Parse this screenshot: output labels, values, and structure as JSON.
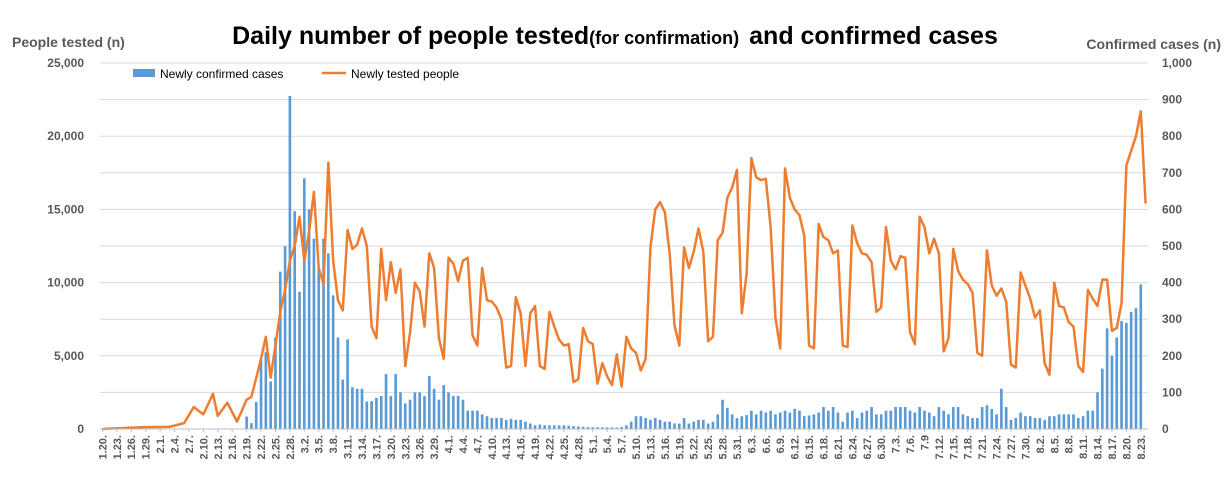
{
  "chart_data": {
    "type": "bar+line",
    "title_main": "Daily number of people tested",
    "title_paren": "(for confirmation)",
    "title_tail": "and confirmed cases",
    "ylabel_left": "People tested (n)",
    "ylabel_right": "Confirmed cases (n)",
    "left_axis": {
      "min": 0,
      "max": 25000,
      "ticks": [
        "0",
        "5,000",
        "10,000",
        "15,000",
        "20,000",
        "25,000"
      ]
    },
    "right_axis": {
      "min": 0,
      "max": 1000,
      "ticks": [
        "0",
        "100",
        "200",
        "300",
        "400",
        "500",
        "600",
        "700",
        "800",
        "900",
        "1,000"
      ]
    },
    "legend": {
      "placement": "top-left",
      "bar_label": "Newly confirmed cases",
      "line_label": "Newly tested people"
    },
    "colors": {
      "bars": "#5b9bd5",
      "line": "#ed7d31",
      "grid": "#d9d9d9",
      "text": "#595959"
    },
    "x_start": "2020-01-20",
    "x_tick_every_days": 3,
    "x_tick_labels": [
      "1.20.",
      "1.23.",
      "1.26.",
      "1.29.",
      "2.1.",
      "2.4.",
      "2.7.",
      "2.10.",
      "2.13.",
      "2.16.",
      "2.19.",
      "2.22.",
      "2.25.",
      "2.28.",
      "3.2.",
      "3.5.",
      "3.8.",
      "3.11.",
      "3.14.",
      "3.17.",
      "3.20.",
      "3.23.",
      "3.26.",
      "3.29.",
      "4.1.",
      "4.4.",
      "4.7.",
      "4.10.",
      "4.13.",
      "4.16.",
      "4.19.",
      "4.22.",
      "4.25.",
      "4.28.",
      "5.1.",
      "5.4.",
      "5.7.",
      "5.10.",
      "5.13.",
      "5.16.",
      "5.19.",
      "5.22.",
      "5.25.",
      "5.28.",
      "5.31.",
      "6.3.",
      "6.6.",
      "6.9.",
      "6.12.",
      "6.15.",
      "6.18.",
      "6.21.",
      "6.24.",
      "6.27.",
      "6.30.",
      "7.3.",
      "7.6.",
      "7.9",
      "7.12.",
      "7.15.",
      "7.18.",
      "7.21.",
      "7.24.",
      "7.27.",
      "7.30.",
      "8.2.",
      "8.5.",
      "8.8.",
      "8.11.",
      "8.14.",
      "8.17.",
      "8.20.",
      "8.23."
    ],
    "tests_anchors": [
      [
        "1.20.",
        0
      ],
      [
        "1.28.",
        120
      ],
      [
        "2.3.",
        150
      ],
      [
        "2.6.",
        400
      ],
      [
        "2.8.",
        1500
      ],
      [
        "2.10.",
        1000
      ],
      [
        "2.12.",
        2400
      ],
      [
        "2.13.",
        900
      ],
      [
        "2.15.",
        1800
      ],
      [
        "2.17.",
        500
      ],
      [
        "2.19.",
        2000
      ],
      [
        "2.20.",
        2200
      ],
      [
        "2.22.",
        4800
      ],
      [
        "2.23.",
        6300
      ],
      [
        "2.24.",
        3500
      ],
      [
        "2.26.",
        8000
      ],
      [
        "2.27.",
        9500
      ],
      [
        "2.28.",
        11500
      ],
      [
        "2.29.",
        12500
      ],
      [
        "3.1.",
        14500
      ],
      [
        "3.2.",
        11500
      ],
      [
        "3.3.",
        13500
      ],
      [
        "3.4.",
        16200
      ],
      [
        "3.5.",
        11000
      ],
      [
        "3.6.",
        9900
      ],
      [
        "3.7.",
        18200
      ],
      [
        "3.8.",
        11500
      ],
      [
        "3.9.",
        8800
      ],
      [
        "3.10.",
        8100
      ],
      [
        "3.11.",
        13600
      ],
      [
        "3.12.",
        12300
      ],
      [
        "3.13.",
        12600
      ],
      [
        "3.14.",
        13700
      ],
      [
        "3.15.",
        12500
      ],
      [
        "3.16.",
        7000
      ],
      [
        "3.17.",
        6200
      ],
      [
        "3.18.",
        12300
      ],
      [
        "3.19.",
        8800
      ],
      [
        "3.20.",
        11400
      ],
      [
        "3.21.",
        9300
      ],
      [
        "3.22.",
        10900
      ],
      [
        "3.23.",
        4300
      ],
      [
        "3.24.",
        6600
      ],
      [
        "3.25.",
        10000
      ],
      [
        "3.26.",
        9400
      ],
      [
        "3.27.",
        7000
      ],
      [
        "3.28.",
        12000
      ],
      [
        "3.29.",
        11000
      ],
      [
        "3.30.",
        6200
      ],
      [
        "3.31.",
        4800
      ],
      [
        "4.1.",
        11700
      ],
      [
        "4.2.",
        11300
      ],
      [
        "4.3.",
        10100
      ],
      [
        "4.4.",
        11500
      ],
      [
        "4.5.",
        11700
      ],
      [
        "4.6.",
        6400
      ],
      [
        "4.7.",
        5700
      ],
      [
        "4.8.",
        11000
      ],
      [
        "4.9.",
        8800
      ],
      [
        "4.10.",
        8700
      ],
      [
        "4.11.",
        8300
      ],
      [
        "4.12.",
        7500
      ],
      [
        "4.13.",
        4200
      ],
      [
        "4.14.",
        4300
      ],
      [
        "4.15.",
        9000
      ],
      [
        "4.16.",
        7900
      ],
      [
        "4.17.",
        4300
      ],
      [
        "4.18.",
        7900
      ],
      [
        "4.19.",
        8400
      ],
      [
        "4.20.",
        4300
      ],
      [
        "4.21.",
        4100
      ],
      [
        "4.22.",
        8000
      ],
      [
        "4.23.",
        7000
      ],
      [
        "4.24.",
        6100
      ],
      [
        "4.25.",
        5700
      ],
      [
        "4.26.",
        5800
      ],
      [
        "4.27.",
        3200
      ],
      [
        "4.28.",
        3400
      ],
      [
        "4.29.",
        6900
      ],
      [
        "4.30.",
        6000
      ],
      [
        "5.1.",
        5800
      ],
      [
        "5.2.",
        3100
      ],
      [
        "5.3.",
        4500
      ],
      [
        "5.4.",
        3600
      ],
      [
        "5.5.",
        3000
      ],
      [
        "5.6.",
        5100
      ],
      [
        "5.7.",
        2900
      ],
      [
        "5.8.",
        6300
      ],
      [
        "5.9.",
        5500
      ],
      [
        "5.10.",
        5200
      ],
      [
        "5.11.",
        4000
      ],
      [
        "5.12.",
        4800
      ],
      [
        "5.13.",
        12400
      ],
      [
        "5.14.",
        15000
      ],
      [
        "5.15.",
        15500
      ],
      [
        "5.16.",
        14800
      ],
      [
        "5.17.",
        12000
      ],
      [
        "5.18.",
        7100
      ],
      [
        "5.19.",
        5700
      ],
      [
        "5.20.",
        12400
      ],
      [
        "5.21.",
        11000
      ],
      [
        "5.22.",
        12100
      ],
      [
        "5.23.",
        13700
      ],
      [
        "5.24.",
        12100
      ],
      [
        "5.25.",
        6000
      ],
      [
        "5.26.",
        6300
      ],
      [
        "5.27.",
        12900
      ],
      [
        "5.28.",
        13400
      ],
      [
        "5.29.",
        15800
      ],
      [
        "5.30.",
        16500
      ],
      [
        "5.31.",
        17700
      ],
      [
        "6.1.",
        7900
      ],
      [
        "6.2.",
        10600
      ],
      [
        "6.3.",
        18500
      ],
      [
        "6.4.",
        17200
      ],
      [
        "6.5.",
        17000
      ],
      [
        "6.6.",
        17100
      ],
      [
        "6.7.",
        13800
      ],
      [
        "6.8.",
        7600
      ],
      [
        "6.9.",
        5500
      ],
      [
        "6.10.",
        17800
      ],
      [
        "6.11.",
        15800
      ],
      [
        "6.12.",
        15000
      ],
      [
        "6.13.",
        14600
      ],
      [
        "6.14.",
        13200
      ],
      [
        "6.15.",
        5700
      ],
      [
        "6.16.",
        5500
      ],
      [
        "6.17.",
        14000
      ],
      [
        "6.18.",
        13100
      ],
      [
        "6.19.",
        12900
      ],
      [
        "6.20.",
        12000
      ],
      [
        "6.21.",
        12200
      ],
      [
        "6.22.",
        5700
      ],
      [
        "6.23.",
        5600
      ],
      [
        "6.24.",
        13900
      ],
      [
        "6.25.",
        12700
      ],
      [
        "6.26.",
        12000
      ],
      [
        "6.27.",
        11900
      ],
      [
        "6.28.",
        11400
      ],
      [
        "6.29.",
        8000
      ],
      [
        "6.30.",
        8300
      ],
      [
        "7.1.",
        13800
      ],
      [
        "7.2.",
        11500
      ],
      [
        "7.3.",
        10900
      ],
      [
        "7.4.",
        11800
      ],
      [
        "7.5.",
        11700
      ],
      [
        "7.6.",
        6600
      ],
      [
        "7.7.",
        5800
      ],
      [
        "7.8.",
        14500
      ],
      [
        "7.9.",
        13800
      ],
      [
        "7.10.",
        12000
      ],
      [
        "7.11.",
        13000
      ],
      [
        "7.12.",
        12000
      ],
      [
        "7.13.",
        5300
      ],
      [
        "7.14.",
        6200
      ],
      [
        "7.15.",
        12300
      ],
      [
        "7.16.",
        10800
      ],
      [
        "7.17.",
        10200
      ],
      [
        "7.18.",
        9900
      ],
      [
        "7.19.",
        9300
      ],
      [
        "7.20.",
        5200
      ],
      [
        "7.21.",
        5000
      ],
      [
        "7.22.",
        12200
      ],
      [
        "7.23.",
        9800
      ],
      [
        "7.24.",
        9100
      ],
      [
        "7.25.",
        9600
      ],
      [
        "7.26.",
        8700
      ],
      [
        "7.27.",
        4400
      ],
      [
        "7.28.",
        4200
      ],
      [
        "7.29.",
        10700
      ],
      [
        "7.30.",
        9800
      ],
      [
        "7.31.",
        8900
      ],
      [
        "8.1.",
        7600
      ],
      [
        "8.2.",
        8100
      ],
      [
        "8.3.",
        4500
      ],
      [
        "8.4.",
        3700
      ],
      [
        "8.5.",
        10000
      ],
      [
        "8.6.",
        8400
      ],
      [
        "8.7.",
        8300
      ],
      [
        "8.8.",
        7300
      ],
      [
        "8.9.",
        7000
      ],
      [
        "8.10.",
        4300
      ],
      [
        "8.11.",
        3900
      ],
      [
        "8.12.",
        9500
      ],
      [
        "8.13.",
        8900
      ],
      [
        "8.14.",
        8400
      ],
      [
        "8.15.",
        10200
      ],
      [
        "8.16.",
        10200
      ],
      [
        "8.17.",
        6700
      ],
      [
        "8.18.",
        6900
      ],
      [
        "8.19.",
        8600
      ],
      [
        "8.20.",
        18000
      ],
      [
        "8.21.",
        19000
      ],
      [
        "8.22.",
        20000
      ],
      [
        "8.23.",
        21700
      ],
      [
        "8.24.",
        15400
      ]
    ],
    "cases_anchors": [
      [
        "1.20.",
        1
      ],
      [
        "2.18.",
        1
      ],
      [
        "2.19.",
        34
      ],
      [
        "2.20.",
        16
      ],
      [
        "2.21.",
        74
      ],
      [
        "2.22.",
        190
      ],
      [
        "2.23.",
        210
      ],
      [
        "2.24.",
        130
      ],
      [
        "2.25.",
        250
      ],
      [
        "2.26.",
        430
      ],
      [
        "2.27.",
        500
      ],
      [
        "2.28.",
        910
      ],
      [
        "2.29.",
        595
      ],
      [
        "3.1.",
        375
      ],
      [
        "3.2.",
        685
      ],
      [
        "3.3.",
        600
      ],
      [
        "3.4.",
        520
      ],
      [
        "3.5.",
        440
      ],
      [
        "3.6.",
        520
      ],
      [
        "3.7.",
        480
      ],
      [
        "3.8.",
        365
      ],
      [
        "3.9.",
        250
      ],
      [
        "3.10.",
        135
      ],
      [
        "3.11.",
        245
      ],
      [
        "3.12.",
        114
      ],
      [
        "3.13.",
        110
      ],
      [
        "3.14.",
        110
      ],
      [
        "3.15.",
        75
      ],
      [
        "3.16.",
        76
      ],
      [
        "3.17.",
        85
      ],
      [
        "3.18.",
        90
      ],
      [
        "3.19.",
        150
      ],
      [
        "3.20.",
        90
      ],
      [
        "3.21.",
        150
      ],
      [
        "3.22.",
        100
      ],
      [
        "3.23.",
        70
      ],
      [
        "3.24.",
        80
      ],
      [
        "3.25.",
        100
      ],
      [
        "3.26.",
        100
      ],
      [
        "3.27.",
        90
      ],
      [
        "3.28.",
        145
      ],
      [
        "3.29.",
        110
      ],
      [
        "3.30.",
        80
      ],
      [
        "3.31.",
        120
      ],
      [
        "4.1.",
        100
      ],
      [
        "4.2.",
        90
      ],
      [
        "4.3.",
        90
      ],
      [
        "4.4.",
        80
      ],
      [
        "4.5.",
        50
      ],
      [
        "4.6.",
        50
      ],
      [
        "4.7.",
        50
      ],
      [
        "4.8.",
        40
      ],
      [
        "4.9.",
        35
      ],
      [
        "4.10.",
        30
      ],
      [
        "4.11.",
        30
      ],
      [
        "4.12.",
        30
      ],
      [
        "4.13.",
        25
      ],
      [
        "4.14.",
        28
      ],
      [
        "4.15.",
        25
      ],
      [
        "4.16.",
        25
      ],
      [
        "4.17.",
        20
      ],
      [
        "4.18.",
        15
      ],
      [
        "4.19.",
        10
      ],
      [
        "4.20.",
        12
      ],
      [
        "4.21.",
        10
      ],
      [
        "4.25.",
        10
      ],
      [
        "4.30.",
        5
      ],
      [
        "5.6.",
        4
      ],
      [
        "5.7.",
        5
      ],
      [
        "5.8.",
        10
      ],
      [
        "5.9.",
        20
      ],
      [
        "5.10.",
        35
      ],
      [
        "5.11.",
        35
      ],
      [
        "5.12.",
        30
      ],
      [
        "5.13.",
        25
      ],
      [
        "5.14.",
        30
      ],
      [
        "5.15.",
        25
      ],
      [
        "5.16.",
        20
      ],
      [
        "5.17.",
        20
      ],
      [
        "5.18.",
        15
      ],
      [
        "5.19.",
        15
      ],
      [
        "5.20.",
        30
      ],
      [
        "5.21.",
        15
      ],
      [
        "5.22.",
        20
      ],
      [
        "5.23.",
        25
      ],
      [
        "5.24.",
        25
      ],
      [
        "5.25.",
        15
      ],
      [
        "5.26.",
        20
      ],
      [
        "5.27.",
        40
      ],
      [
        "5.28.",
        80
      ],
      [
        "5.29.",
        58
      ],
      [
        "5.30.",
        40
      ],
      [
        "5.31.",
        30
      ],
      [
        "6.1.",
        35
      ],
      [
        "6.2.",
        38
      ],
      [
        "6.3.",
        50
      ],
      [
        "6.4.",
        40
      ],
      [
        "6.5.",
        50
      ],
      [
        "6.6.",
        45
      ],
      [
        "6.7.",
        50
      ],
      [
        "6.8.",
        40
      ],
      [
        "6.9.",
        45
      ],
      [
        "6.10.",
        50
      ],
      [
        "6.11.",
        45
      ],
      [
        "6.12.",
        55
      ],
      [
        "6.13.",
        50
      ],
      [
        "6.14.",
        35
      ],
      [
        "6.15.",
        37
      ],
      [
        "6.16.",
        40
      ],
      [
        "6.17.",
        45
      ],
      [
        "6.18.",
        60
      ],
      [
        "6.19.",
        50
      ],
      [
        "6.20.",
        60
      ],
      [
        "6.21.",
        45
      ],
      [
        "6.22.",
        20
      ],
      [
        "6.23.",
        45
      ],
      [
        "6.24.",
        50
      ],
      [
        "6.25.",
        30
      ],
      [
        "6.26.",
        45
      ],
      [
        "6.27.",
        50
      ],
      [
        "6.28.",
        60
      ],
      [
        "6.29.",
        40
      ],
      [
        "6.30.",
        40
      ],
      [
        "7.1.",
        50
      ],
      [
        "7.2.",
        50
      ],
      [
        "7.3.",
        60
      ],
      [
        "7.4.",
        60
      ],
      [
        "7.5.",
        60
      ],
      [
        "7.6.",
        50
      ],
      [
        "7.7.",
        45
      ],
      [
        "7.8.",
        60
      ],
      [
        "7.9.",
        50
      ],
      [
        "7.10.",
        45
      ],
      [
        "7.11.",
        35
      ],
      [
        "7.12.",
        60
      ],
      [
        "7.13.",
        50
      ],
      [
        "7.14.",
        40
      ],
      [
        "7.15.",
        60
      ],
      [
        "7.16.",
        60
      ],
      [
        "7.17.",
        40
      ],
      [
        "7.18.",
        35
      ],
      [
        "7.19.",
        30
      ],
      [
        "7.20.",
        30
      ],
      [
        "7.21.",
        60
      ],
      [
        "7.22.",
        65
      ],
      [
        "7.23.",
        55
      ],
      [
        "7.24.",
        40
      ],
      [
        "7.25.",
        110
      ],
      [
        "7.26.",
        60
      ],
      [
        "7.27.",
        25
      ],
      [
        "7.28.",
        30
      ],
      [
        "7.29.",
        45
      ],
      [
        "7.30.",
        35
      ],
      [
        "7.31.",
        35
      ],
      [
        "8.1.",
        30
      ],
      [
        "8.2.",
        30
      ],
      [
        "8.3.",
        25
      ],
      [
        "8.4.",
        35
      ],
      [
        "8.5.",
        35
      ],
      [
        "8.6.",
        40
      ],
      [
        "8.7.",
        40
      ],
      [
        "8.8.",
        40
      ],
      [
        "8.9.",
        40
      ],
      [
        "8.10.",
        30
      ],
      [
        "8.11.",
        35
      ],
      [
        "8.12.",
        50
      ],
      [
        "8.13.",
        50
      ],
      [
        "8.14.",
        100
      ],
      [
        "8.15.",
        165
      ],
      [
        "8.16.",
        275
      ],
      [
        "8.17.",
        200
      ],
      [
        "8.18.",
        250
      ],
      [
        "8.19.",
        295
      ],
      [
        "8.20.",
        290
      ],
      [
        "8.21.",
        320
      ],
      [
        "8.22.",
        330
      ],
      [
        "8.23.",
        395
      ]
    ]
  }
}
